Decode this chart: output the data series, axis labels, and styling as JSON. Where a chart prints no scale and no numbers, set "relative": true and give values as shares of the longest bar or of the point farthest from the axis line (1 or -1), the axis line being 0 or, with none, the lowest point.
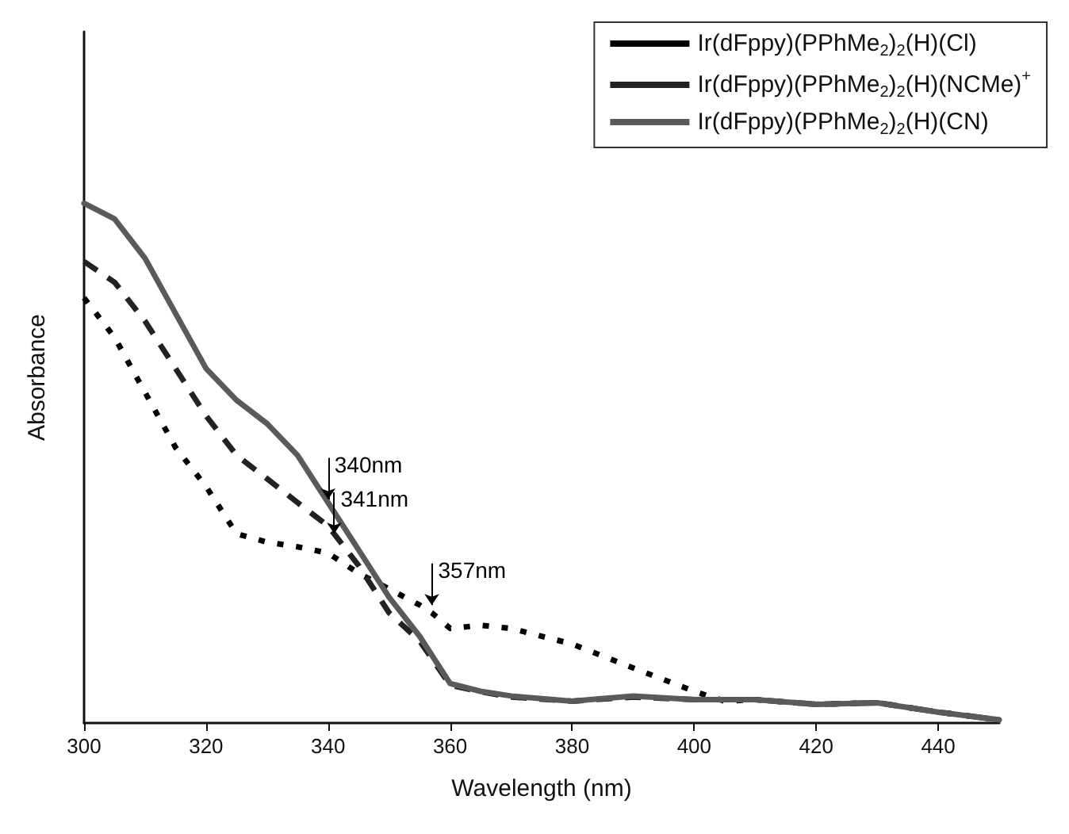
{
  "chart_data": {
    "type": "line",
    "relative": true,
    "xlabel": "Wavelength (nm)",
    "ylabel": "Absorbance",
    "xlim": [
      300,
      450
    ],
    "xticks": [
      300,
      320,
      340,
      360,
      380,
      400,
      420,
      440
    ],
    "grid": false,
    "legend": "top right",
    "marker": "none",
    "x": [
      300,
      305,
      310,
      315,
      320,
      325,
      330,
      335,
      340,
      345,
      350,
      355,
      360,
      365,
      370,
      380,
      390,
      400,
      410,
      420,
      430,
      440,
      450
    ],
    "series": [
      {
        "name": "Ir(dFppy)(PPhMe$_{2}$)$_{2}$(H)(Cl)",
        "color": "#000000",
        "line_style": "dotted",
        "x": [
          300,
          305,
          310,
          315,
          320,
          325,
          330,
          335,
          340,
          345,
          350,
          355,
          357,
          360,
          365,
          370,
          380,
          390,
          400,
          405,
          410,
          420,
          430,
          440,
          450
        ],
        "values": [
          0.818,
          0.742,
          0.636,
          0.53,
          0.455,
          0.364,
          0.348,
          0.339,
          0.327,
          0.288,
          0.258,
          0.227,
          0.212,
          0.182,
          0.188,
          0.182,
          0.152,
          0.106,
          0.061,
          0.042,
          0.045,
          0.036,
          0.039,
          0.021,
          0.006
        ]
      },
      {
        "name": "Ir(dFppy)(PPhMe$_{2}$)$_{2}$(H)(NCMe)$^{+}$",
        "color": "#222222",
        "line_style": "dashed",
        "values": [
          0.888,
          0.848,
          0.773,
          0.682,
          0.591,
          0.515,
          0.47,
          0.424,
          0.379,
          0.303,
          0.212,
          0.158,
          0.073,
          0.06,
          0.05,
          0.042,
          0.05,
          0.045,
          0.045,
          0.036,
          0.039,
          0.021,
          0.006
        ]
      },
      {
        "name": "Ir(dFppy)(PPhMe$_{2}$)$_{2}$(H)(CN)",
        "color": "#5a5a5a",
        "line_style": "solid",
        "values": [
          1,
          0.97,
          0.894,
          0.788,
          0.682,
          0.621,
          0.576,
          0.515,
          0.424,
          0.333,
          0.242,
          0.167,
          0.076,
          0.061,
          0.052,
          0.042,
          0.052,
          0.045,
          0.045,
          0.036,
          0.039,
          0.021,
          0.006
        ]
      }
    ],
    "annotations": [
      {
        "text": "340nm",
        "x": 340,
        "y": 0.43
      },
      {
        "text": "341nm",
        "x": 341,
        "y": 0.364
      },
      {
        "text": "357nm",
        "x": 357,
        "y": 0.227
      }
    ]
  }
}
